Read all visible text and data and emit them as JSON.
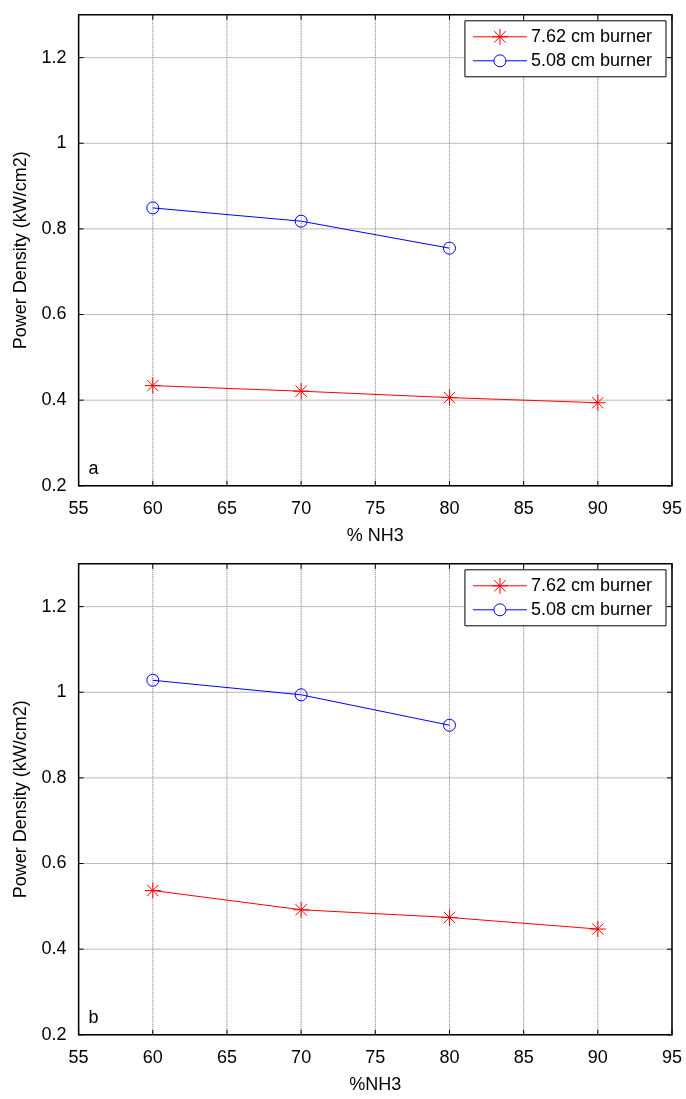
{
  "chart_data": [
    {
      "type": "line",
      "x": [
        60,
        70,
        80,
        90
      ],
      "xlabel": "% NH3",
      "ylabel": "Power Density (kW/cm2)",
      "series": [
        {
          "name": "7.62 cm burner",
          "color": "#ff0000",
          "marker": "cross",
          "values": [
            0.434,
            0.421,
            0.406,
            0.394
          ]
        },
        {
          "name": "5.08 cm burner",
          "color": "#0000ff",
          "marker": "circle",
          "values": [
            0.849,
            0.818,
            0.755,
            null
          ]
        }
      ],
      "xlim": [
        55,
        95
      ],
      "xticks": [
        55,
        60,
        65,
        70,
        75,
        80,
        85,
        90,
        95
      ],
      "ylim": [
        0.2,
        1.3
      ],
      "yticks": [
        0.2,
        0.4,
        0.6,
        0.8,
        1,
        1.2
      ],
      "grid": true,
      "legend": "top right",
      "annotations": [
        "a"
      ]
    },
    {
      "type": "line",
      "x": [
        60,
        70,
        80,
        90
      ],
      "xlabel": "%NH3",
      "ylabel": "Power Density (kW/cm2)",
      "series": [
        {
          "name": "7.62 cm burner",
          "color": "#ff0000",
          "marker": "cross",
          "values": [
            0.537,
            0.492,
            0.474,
            0.447
          ]
        },
        {
          "name": "5.08 cm burner",
          "color": "#0000ff",
          "marker": "circle",
          "values": [
            1.028,
            0.994,
            0.923,
            null
          ]
        }
      ],
      "xlim": [
        55,
        95
      ],
      "xticks": [
        55,
        60,
        65,
        70,
        75,
        80,
        85,
        90,
        95
      ],
      "ylim": [
        0.2,
        1.3
      ],
      "yticks": [
        0.2,
        0.4,
        0.6,
        0.8,
        1,
        1.2
      ],
      "grid": true,
      "legend": "top right",
      "annotations": [
        "b"
      ]
    }
  ]
}
